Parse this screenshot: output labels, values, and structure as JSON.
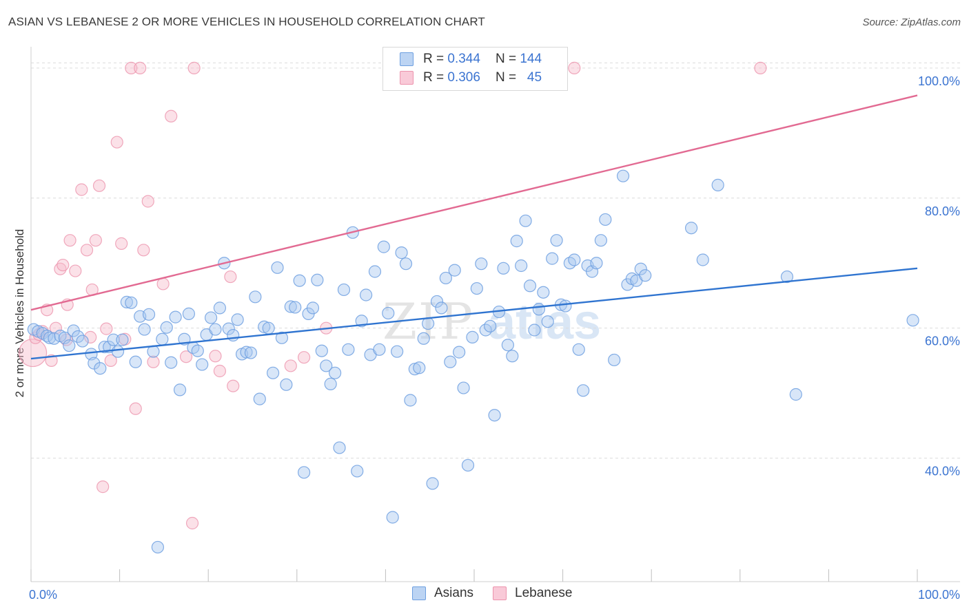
{
  "header": {
    "title": "ASIAN VS LEBANESE 2 OR MORE VEHICLES IN HOUSEHOLD CORRELATION CHART",
    "source": "Source: ZipAtlas.com"
  },
  "legend": {
    "asian": {
      "r_label": "R =",
      "r_value": "0.344",
      "n_label": "N =",
      "n_value": "144"
    },
    "lebanese": {
      "r_label": "R =",
      "r_value": "0.306",
      "n_label": "N =",
      "n_value": "45"
    }
  },
  "bottom_legend": {
    "asian": "Asians",
    "lebanese": "Lebanese"
  },
  "watermark": {
    "zip": "ZIP",
    "atlas": "atlas"
  },
  "colors": {
    "asian_fill": "#a9c8f0",
    "asian_stroke": "#6d9fe0",
    "asian_line": "#2f74d0",
    "lebanese_fill": "#f6bccd",
    "lebanese_stroke": "#ec93ad",
    "lebanese_line": "#e26a92",
    "tick_label": "#3b74d1",
    "grid": "#dcdcdc"
  },
  "chart_data": {
    "type": "scatter",
    "xlabel": "",
    "ylabel": "2 or more Vehicles in Household",
    "x_tick_labels": [
      "0.0%",
      "100.0%"
    ],
    "y_tick_labels": [
      "40.0%",
      "60.0%",
      "80.0%",
      "100.0%"
    ],
    "y_ticks": [
      40,
      60,
      80,
      100
    ],
    "xlim": [
      0,
      100
    ],
    "ylim": [
      21,
      102
    ],
    "grid": true,
    "legend_placement": "top-center",
    "series": [
      {
        "name": "Asians",
        "r": 0.344,
        "n": 144,
        "trend": {
          "x": [
            0,
            100
          ],
          "y": [
            55.3,
            69.2
          ]
        },
        "points": [
          [
            0.3,
            59.8
          ],
          [
            0.8,
            59.5
          ],
          [
            1.3,
            59.2
          ],
          [
            1.8,
            58.8
          ],
          [
            2.1,
            58.5
          ],
          [
            2.6,
            58.4
          ],
          [
            3.3,
            58.8
          ],
          [
            3.8,
            58.5
          ],
          [
            4.3,
            57.3
          ],
          [
            4.8,
            59.6
          ],
          [
            5.3,
            58.7
          ],
          [
            5.8,
            58.0
          ],
          [
            6.8,
            56.0
          ],
          [
            7.1,
            54.6
          ],
          [
            7.8,
            53.8
          ],
          [
            8.3,
            57.1
          ],
          [
            8.8,
            57.1
          ],
          [
            9.3,
            58.2
          ],
          [
            9.8,
            56.4
          ],
          [
            10.3,
            58.2
          ],
          [
            10.8,
            64.0
          ],
          [
            11.3,
            63.9
          ],
          [
            11.8,
            54.8
          ],
          [
            12.3,
            61.8
          ],
          [
            12.8,
            59.8
          ],
          [
            13.3,
            62.1
          ],
          [
            13.8,
            56.4
          ],
          [
            14.3,
            26.3
          ],
          [
            14.8,
            58.3
          ],
          [
            15.3,
            60.1
          ],
          [
            15.8,
            54.7
          ],
          [
            16.3,
            61.7
          ],
          [
            16.8,
            50.5
          ],
          [
            17.3,
            58.3
          ],
          [
            17.8,
            62.2
          ],
          [
            18.3,
            57.0
          ],
          [
            18.8,
            56.5
          ],
          [
            19.3,
            54.4
          ],
          [
            19.8,
            59.0
          ],
          [
            20.3,
            61.6
          ],
          [
            20.8,
            59.8
          ],
          [
            21.3,
            63.1
          ],
          [
            21.8,
            70.0
          ],
          [
            22.3,
            59.9
          ],
          [
            22.8,
            58.9
          ],
          [
            23.3,
            61.3
          ],
          [
            23.8,
            56.0
          ],
          [
            24.3,
            56.3
          ],
          [
            24.8,
            56.2
          ],
          [
            25.3,
            64.8
          ],
          [
            25.8,
            49.1
          ],
          [
            26.3,
            60.2
          ],
          [
            26.8,
            60.0
          ],
          [
            27.3,
            53.1
          ],
          [
            27.8,
            69.3
          ],
          [
            28.3,
            58.5
          ],
          [
            28.8,
            51.3
          ],
          [
            29.3,
            63.3
          ],
          [
            29.8,
            63.2
          ],
          [
            30.3,
            67.3
          ],
          [
            30.8,
            37.8
          ],
          [
            31.3,
            62.2
          ],
          [
            31.8,
            63.1
          ],
          [
            32.3,
            67.4
          ],
          [
            32.8,
            56.5
          ],
          [
            33.3,
            54.2
          ],
          [
            33.8,
            51.4
          ],
          [
            34.3,
            53.1
          ],
          [
            34.8,
            41.6
          ],
          [
            35.3,
            65.9
          ],
          [
            35.8,
            56.7
          ],
          [
            36.3,
            74.7
          ],
          [
            36.8,
            38.0
          ],
          [
            37.3,
            61.1
          ],
          [
            37.8,
            65.1
          ],
          [
            38.3,
            55.9
          ],
          [
            38.8,
            68.7
          ],
          [
            39.3,
            56.7
          ],
          [
            39.8,
            72.5
          ],
          [
            40.3,
            62.3
          ],
          [
            40.8,
            30.9
          ],
          [
            41.3,
            56.4
          ],
          [
            41.8,
            71.6
          ],
          [
            42.3,
            69.9
          ],
          [
            42.8,
            48.9
          ],
          [
            43.3,
            53.7
          ],
          [
            43.8,
            53.9
          ],
          [
            44.3,
            58.4
          ],
          [
            44.8,
            60.7
          ],
          [
            45.3,
            36.1
          ],
          [
            45.8,
            64.1
          ],
          [
            46.3,
            63.1
          ],
          [
            46.8,
            67.7
          ],
          [
            47.3,
            54.8
          ],
          [
            47.8,
            68.9
          ],
          [
            48.3,
            56.3
          ],
          [
            48.8,
            50.8
          ],
          [
            49.3,
            38.9
          ],
          [
            49.8,
            58.6
          ],
          [
            50.3,
            66.1
          ],
          [
            50.8,
            69.9
          ],
          [
            51.3,
            59.7
          ],
          [
            51.8,
            60.3
          ],
          [
            52.3,
            46.6
          ],
          [
            52.8,
            62.5
          ],
          [
            53.3,
            69.2
          ],
          [
            53.8,
            57.4
          ],
          [
            54.3,
            55.7
          ],
          [
            54.8,
            73.4
          ],
          [
            55.3,
            69.6
          ],
          [
            55.8,
            76.5
          ],
          [
            56.3,
            66.5
          ],
          [
            56.8,
            59.7
          ],
          [
            57.3,
            62.9
          ],
          [
            57.8,
            65.5
          ],
          [
            58.3,
            61.0
          ],
          [
            58.8,
            70.7
          ],
          [
            59.3,
            73.5
          ],
          [
            59.8,
            63.6
          ],
          [
            60.3,
            63.4
          ],
          [
            60.8,
            70.0
          ],
          [
            61.3,
            70.5
          ],
          [
            61.8,
            56.7
          ],
          [
            62.3,
            50.4
          ],
          [
            62.8,
            69.6
          ],
          [
            63.3,
            68.7
          ],
          [
            63.8,
            70.0
          ],
          [
            64.3,
            73.5
          ],
          [
            64.8,
            76.7
          ],
          [
            65.8,
            55.1
          ],
          [
            66.8,
            83.4
          ],
          [
            67.3,
            66.7
          ],
          [
            67.8,
            67.6
          ],
          [
            68.3,
            67.3
          ],
          [
            68.8,
            69.1
          ],
          [
            69.3,
            68.1
          ],
          [
            74.5,
            75.4
          ],
          [
            75.8,
            70.5
          ],
          [
            77.5,
            82.0
          ],
          [
            85.3,
            67.9
          ],
          [
            86.3,
            49.8
          ],
          [
            99.5,
            61.2
          ]
        ]
      },
      {
        "name": "Lebanese",
        "r": 0.306,
        "n": 45,
        "trend": {
          "x": [
            0,
            100
          ],
          "y": [
            62.8,
            95.8
          ]
        },
        "points": [
          [
            0.2,
            56.2
          ],
          [
            0.5,
            58.5
          ],
          [
            0.9,
            59.0
          ],
          [
            1.3,
            59.5
          ],
          [
            1.8,
            62.8
          ],
          [
            2.3,
            55.0
          ],
          [
            2.8,
            60.0
          ],
          [
            3.3,
            69.1
          ],
          [
            3.6,
            69.7
          ],
          [
            4.1,
            63.6
          ],
          [
            4.4,
            73.5
          ],
          [
            5.0,
            68.8
          ],
          [
            5.7,
            81.3
          ],
          [
            6.3,
            72.0
          ],
          [
            6.7,
            58.6
          ],
          [
            6.9,
            65.9
          ],
          [
            7.3,
            73.5
          ],
          [
            7.7,
            81.9
          ],
          [
            8.1,
            35.6
          ],
          [
            8.5,
            59.9
          ],
          [
            9.0,
            55.0
          ],
          [
            9.7,
            88.6
          ],
          [
            10.2,
            73.0
          ],
          [
            10.6,
            58.3
          ],
          [
            11.3,
            100.0
          ],
          [
            11.8,
            47.6
          ],
          [
            12.3,
            100.0
          ],
          [
            12.7,
            72.0
          ],
          [
            13.2,
            79.5
          ],
          [
            13.8,
            54.8
          ],
          [
            14.9,
            66.8
          ],
          [
            15.8,
            92.6
          ],
          [
            17.5,
            55.6
          ],
          [
            18.2,
            30.0
          ],
          [
            18.4,
            100.0
          ],
          [
            20.8,
            55.7
          ],
          [
            21.3,
            53.4
          ],
          [
            22.5,
            67.9
          ],
          [
            22.8,
            51.1
          ],
          [
            29.3,
            54.2
          ],
          [
            30.8,
            55.5
          ],
          [
            33.3,
            60.0
          ],
          [
            61.3,
            100.0
          ],
          [
            82.3,
            100.0
          ],
          [
            4.0,
            58.2
          ]
        ]
      }
    ]
  }
}
